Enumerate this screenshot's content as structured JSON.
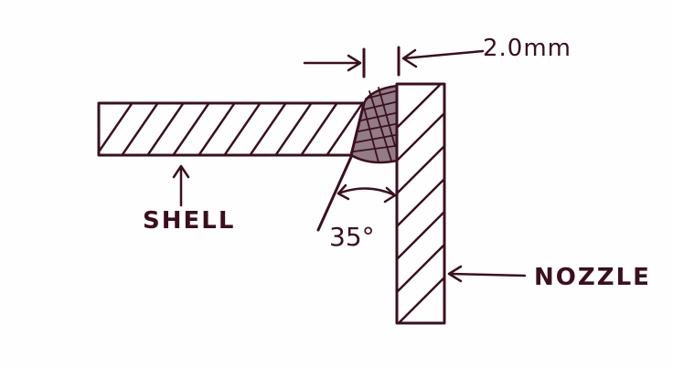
{
  "labels": {
    "gap": "2.0mm",
    "angle": "35°",
    "shell": "SHELL",
    "nozzle": "NOZZLE"
  },
  "colors": {
    "ink": "#3a1020",
    "paper": "#fefefe"
  }
}
